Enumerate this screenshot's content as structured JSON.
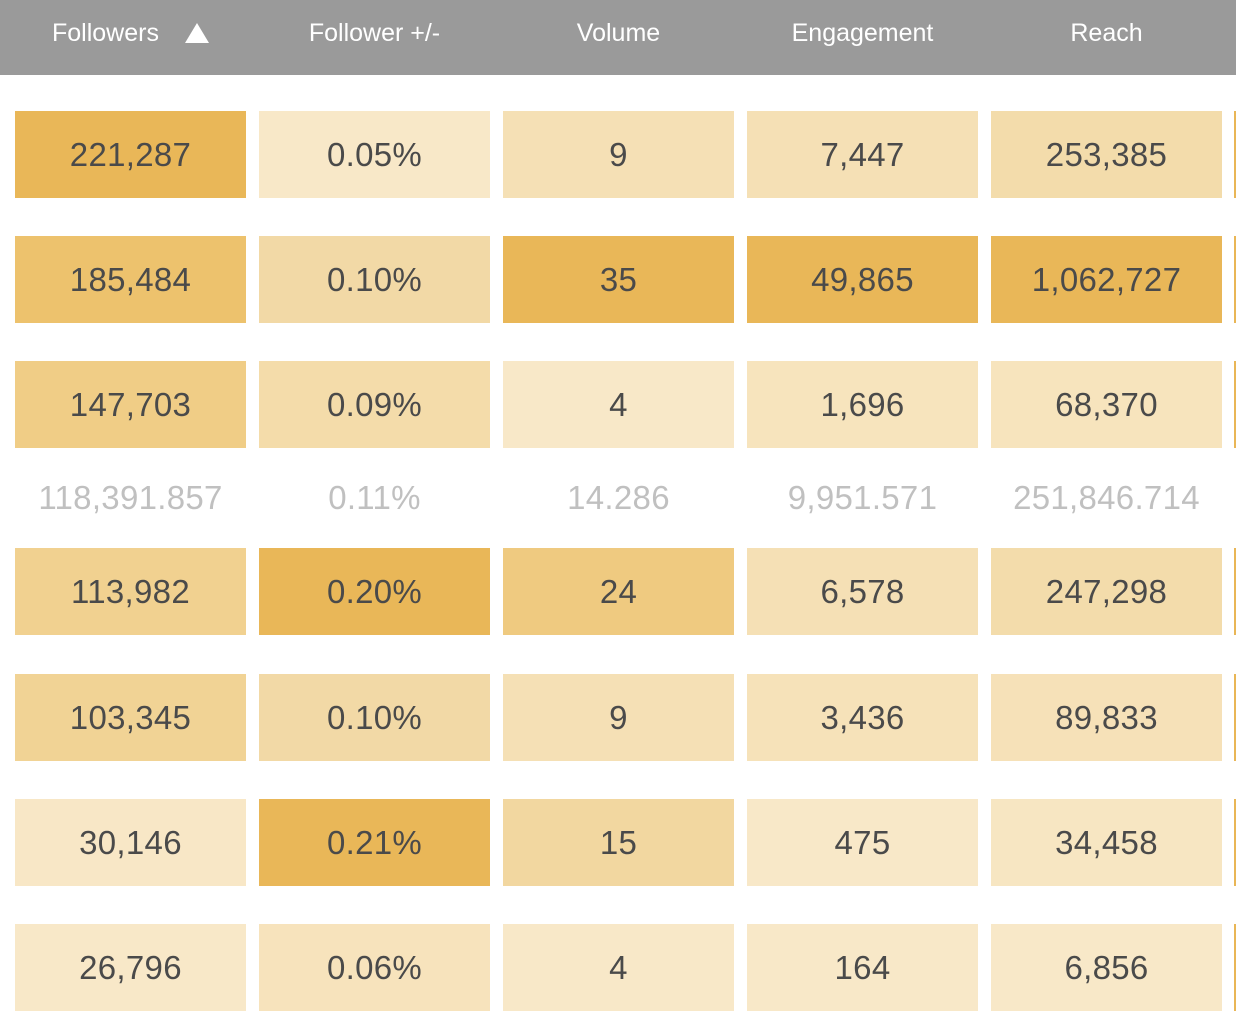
{
  "table": {
    "columns": [
      "Followers",
      "Follower +/-",
      "Volume",
      "Engagement",
      "Reach"
    ],
    "sort": {
      "column": "Followers",
      "icon": "sort-ascending-icon"
    },
    "rows_above": [
      {
        "cells": [
          {
            "text": "221,287",
            "color": "#e9b758"
          },
          {
            "text": "0.05%",
            "color": "#f8e8c8"
          },
          {
            "text": "9",
            "color": "#f5e0b5"
          },
          {
            "text": "7,447",
            "color": "#f5e0b5"
          },
          {
            "text": "253,385",
            "color": "#f3dcab"
          }
        ]
      },
      {
        "cells": [
          {
            "text": "185,484",
            "color": "#edc26d"
          },
          {
            "text": "0.10%",
            "color": "#f2d9a6"
          },
          {
            "text": "35",
            "color": "#e9b758"
          },
          {
            "text": "49,865",
            "color": "#e9b758"
          },
          {
            "text": "1,062,727",
            "color": "#e9b758"
          }
        ]
      },
      {
        "cells": [
          {
            "text": "147,703",
            "color": "#f0cd86"
          },
          {
            "text": "0.09%",
            "color": "#f4dcaa"
          },
          {
            "text": "4",
            "color": "#f8e8c8"
          },
          {
            "text": "1,696",
            "color": "#f7e4bd"
          },
          {
            "text": "68,370",
            "color": "#f7e4bd"
          }
        ]
      }
    ],
    "average": [
      "118,391.857",
      "0.11%",
      "14.286",
      "9,951.571",
      "251,846.714"
    ],
    "rows_below": [
      {
        "cells": [
          {
            "text": "113,982",
            "color": "#f1d190"
          },
          {
            "text": "0.20%",
            "color": "#e9b758"
          },
          {
            "text": "24",
            "color": "#efca80"
          },
          {
            "text": "6,578",
            "color": "#f5e0b5"
          },
          {
            "text": "247,298",
            "color": "#f3dcab"
          }
        ]
      },
      {
        "cells": [
          {
            "text": "103,345",
            "color": "#f1d395"
          },
          {
            "text": "0.10%",
            "color": "#f2d9a6"
          },
          {
            "text": "9",
            "color": "#f5e0b5"
          },
          {
            "text": "3,436",
            "color": "#f6e2b9"
          },
          {
            "text": "89,833",
            "color": "#f6e1b8"
          }
        ]
      },
      {
        "cells": [
          {
            "text": "30,146",
            "color": "#f8e7c6"
          },
          {
            "text": "0.21%",
            "color": "#e9b758"
          },
          {
            "text": "15",
            "color": "#f2d7a0"
          },
          {
            "text": "475",
            "color": "#f8e8c8"
          },
          {
            "text": "34,458",
            "color": "#f7e6c2"
          }
        ]
      },
      {
        "cells": [
          {
            "text": "26,796",
            "color": "#f8e8c8"
          },
          {
            "text": "0.06%",
            "color": "#f7e3bc"
          },
          {
            "text": "4",
            "color": "#f8e8c8"
          },
          {
            "text": "164",
            "color": "#f8e8c8"
          },
          {
            "text": "6,856",
            "color": "#f8e8c8"
          }
        ]
      }
    ]
  }
}
